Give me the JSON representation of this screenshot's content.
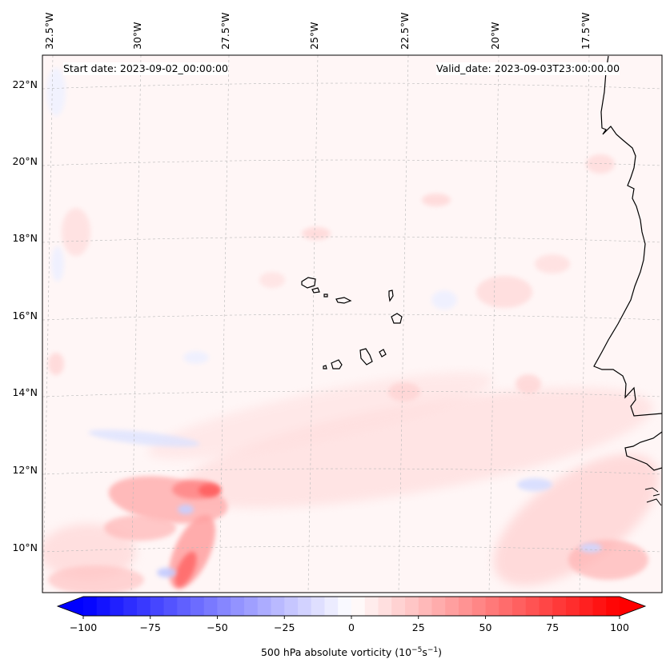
{
  "map": {
    "region": "Eastern tropical Atlantic — Cape Verde Islands and West African coast",
    "start_date_label": "Start date: 2023-09-02_00:00:00",
    "valid_date_label": "Valid_date: 2023-09-03T23:00:00.00",
    "lon_labels": [
      "32.5°W",
      "30°W",
      "27.5°W",
      "25°W",
      "22.5°W",
      "20°W",
      "17.5°W"
    ],
    "lat_labels": [
      "22°N",
      "20°N",
      "18°N",
      "16°N",
      "14°N",
      "12°N",
      "10°N"
    ],
    "gridlines": true,
    "features": [
      "coastline",
      "islands"
    ]
  },
  "colorbar": {
    "label_prefix": "500 hPa absolute vorticity (10",
    "label_exp1": "−5",
    "label_mid": "s",
    "label_exp2": "−1",
    "label_suffix": ")",
    "min": -100,
    "max": 100,
    "step": 5,
    "extend": "both",
    "colormap": "bwr",
    "ticks": [
      "−100",
      "−75",
      "−50",
      "−25",
      "0",
      "25",
      "50",
      "75",
      "100"
    ],
    "colors": {
      "low": "#0000ff",
      "mid": "#ffffff",
      "high": "#ff0000"
    }
  },
  "chart_data": {
    "type": "heatmap",
    "variable": "500 hPa absolute vorticity",
    "units": "10^-5 s^-1",
    "value_range": [
      -100,
      100
    ],
    "x_axis": "longitude",
    "y_axis": "latitude",
    "x_ticks": [
      "32.5°W",
      "30°W",
      "27.5°W",
      "25°W",
      "22.5°W",
      "20°W",
      "17.5°W"
    ],
    "y_ticks": [
      "22°N",
      "20°N",
      "18°N",
      "16°N",
      "14°N",
      "12°N",
      "10°N"
    ]
  }
}
